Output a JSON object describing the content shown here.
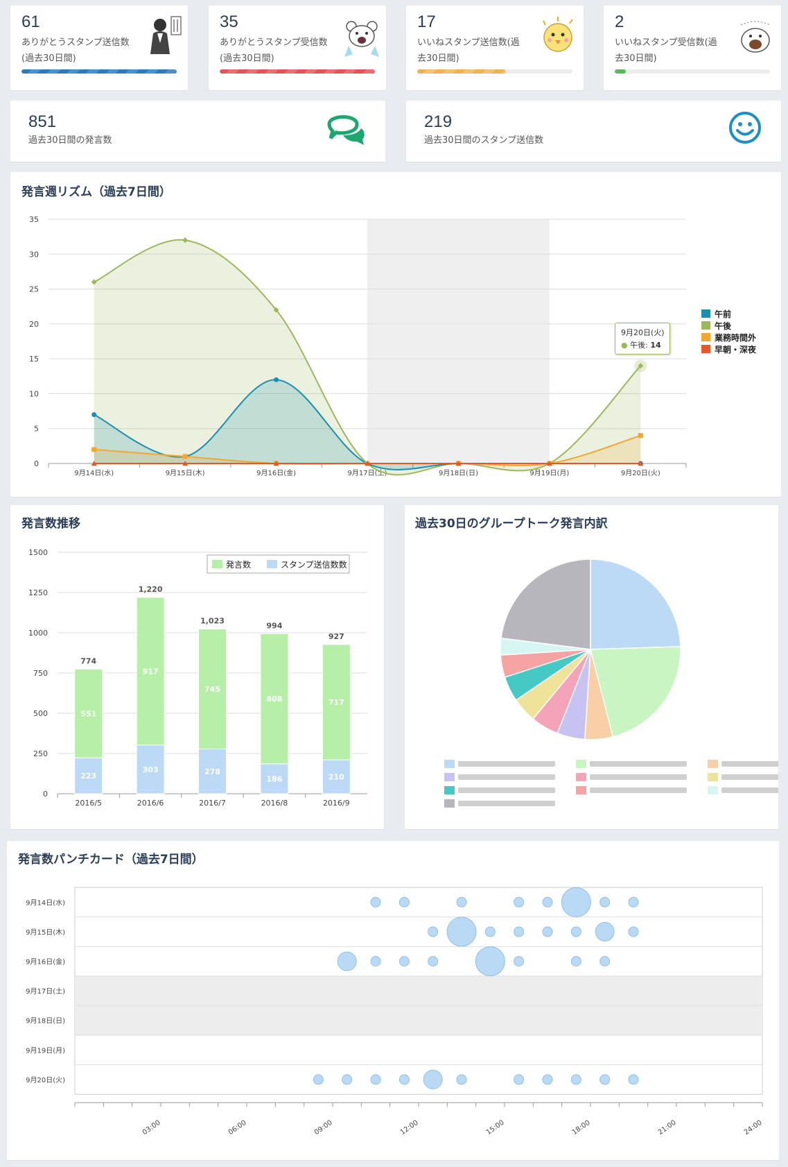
{
  "stats": [
    {
      "value": "61",
      "label1": "ありがとうスタンプ送信数",
      "label2": "(過去30日間)",
      "fill_pct": 100,
      "color": "#2f7ab8",
      "stamp": "salaryman-bow-stamp-icon"
    },
    {
      "value": "35",
      "label1": "ありがとうスタンプ受信数",
      "label2": "(過去30日間)",
      "fill_pct": 100,
      "color": "#e0545a",
      "stamp": "bear-cry-stamp-icon"
    },
    {
      "value": "17",
      "label1": "いいねスタンプ送信数(過",
      "label2": "去30日間)",
      "fill_pct": 57,
      "color": "#f0b153",
      "stamp": "chick-stamp-icon"
    },
    {
      "value": "2",
      "label1": "いいねスタンプ受信数(過",
      "label2": "去30日間)",
      "fill_pct": 7,
      "color": "#5cb85c",
      "stamp": "bird-stamp-icon"
    }
  ],
  "big_stats": [
    {
      "value": "851",
      "label": "過去30日間の発言数",
      "icon": "speech-bubbles-icon",
      "color": "#1aa86e"
    },
    {
      "value": "219",
      "label": "過去30日間のスタンプ送信数",
      "icon": "smiley-icon",
      "color": "#1d8fc5"
    }
  ],
  "rhythm": {
    "title": "発言週リズム（過去7日間）",
    "tooltip_date": "9月20日(火)",
    "tooltip_series": "午後",
    "tooltip_value": "14",
    "chart_data": {
      "type": "area",
      "categories": [
        "9月14日(水)",
        "9月15日(木)",
        "9月16日(金)",
        "9月17日(土)",
        "9月18日(日)",
        "9月19日(月)",
        "9月20日(火)"
      ],
      "ylim": [
        0,
        35
      ],
      "yticks": [
        0,
        5,
        10,
        15,
        20,
        25,
        30,
        35
      ],
      "weekend_band": [
        "9月17日(土)",
        "9月18日(日)"
      ],
      "legend": "right",
      "series": [
        {
          "name": "午前",
          "color": "#1a8fb0",
          "values": [
            7,
            1,
            12,
            0,
            0,
            0,
            0
          ]
        },
        {
          "name": "午後",
          "color": "#9bb85a",
          "values": [
            26,
            32,
            22,
            0,
            0,
            0,
            14
          ]
        },
        {
          "name": "業務時間外",
          "color": "#f0a830",
          "values": [
            2,
            1,
            0,
            0,
            0,
            0,
            4
          ]
        },
        {
          "name": "早朝・深夜",
          "color": "#e05a2a",
          "values": [
            0,
            0,
            0,
            0,
            0,
            0,
            0
          ]
        }
      ]
    }
  },
  "trend": {
    "title": "発言数推移",
    "chart_data": {
      "type": "bar",
      "categories": [
        "2016/5",
        "2016/6",
        "2016/7",
        "2016/8",
        "2016/9"
      ],
      "ylim": [
        0,
        1500
      ],
      "yticks": [
        0,
        250,
        500,
        750,
        1000,
        1250,
        1500
      ],
      "totals": [
        "774",
        "1,220",
        "1,023",
        "994",
        "927"
      ],
      "legend": "top-right",
      "series": [
        {
          "name": "スタンプ送信数数",
          "color": "#bcdaf5",
          "values": [
            223,
            303,
            278,
            186,
            210
          ]
        },
        {
          "name": "発言数",
          "color": "#b6f0a8",
          "values": [
            551,
            917,
            745,
            808,
            717
          ]
        }
      ]
    }
  },
  "breakdown": {
    "title": "過去30日のグループトーク発言内訳",
    "chart_data": {
      "type": "pie",
      "legend": "bottom",
      "slices": [
        {
          "value": 24.5,
          "color": "#bcdaf5"
        },
        {
          "value": 21.5,
          "color": "#c8f5c2"
        },
        {
          "value": 5.0,
          "color": "#f9cfa7"
        },
        {
          "value": 5.0,
          "color": "#c6c3f2"
        },
        {
          "value": 5.0,
          "color": "#f5a3b8"
        },
        {
          "value": 4.5,
          "color": "#efe39a"
        },
        {
          "value": 4.5,
          "color": "#46c9c4"
        },
        {
          "value": 4.0,
          "color": "#f6a3a3"
        },
        {
          "value": 3.0,
          "color": "#d6f6f3"
        },
        {
          "value": 23.0,
          "color": "#b7b6bd"
        }
      ]
    }
  },
  "punch": {
    "title": "発言数パンチカード（過去7日間）",
    "chart_data": {
      "type": "scatter",
      "rows": [
        "9月14日(水)",
        "9月15日(木)",
        "9月16日(金)",
        "9月17日(土)",
        "9月18日(日)",
        "9月19日(月)",
        "9月20日(火)"
      ],
      "weekend_rows": [
        3,
        4
      ],
      "xlim": [
        0,
        24
      ],
      "xticks": [
        "03:00",
        "06:00",
        "09:00",
        "12:00",
        "15:00",
        "18:00",
        "21:00",
        "24:00"
      ],
      "points": [
        [
          0,
          10.5,
          1
        ],
        [
          0,
          11.5,
          1
        ],
        [
          0,
          13.5,
          1
        ],
        [
          0,
          15.5,
          1
        ],
        [
          0,
          16.5,
          1
        ],
        [
          0,
          17.5,
          3
        ],
        [
          0,
          18.5,
          1
        ],
        [
          0,
          19.5,
          1
        ],
        [
          1,
          12.5,
          1
        ],
        [
          1,
          13.5,
          3
        ],
        [
          1,
          14.5,
          1
        ],
        [
          1,
          15.5,
          1
        ],
        [
          1,
          16.5,
          1
        ],
        [
          1,
          17.5,
          1
        ],
        [
          1,
          18.5,
          1.5
        ],
        [
          1,
          19.5,
          1
        ],
        [
          2,
          9.5,
          1.5
        ],
        [
          2,
          10.5,
          1
        ],
        [
          2,
          11.5,
          1
        ],
        [
          2,
          12.5,
          1
        ],
        [
          2,
          14.5,
          3
        ],
        [
          2,
          15.5,
          1
        ],
        [
          2,
          17.5,
          1
        ],
        [
          2,
          18.5,
          1
        ],
        [
          6,
          8.5,
          1
        ],
        [
          6,
          9.5,
          1
        ],
        [
          6,
          10.5,
          1
        ],
        [
          6,
          11.5,
          1
        ],
        [
          6,
          12.5,
          1.5
        ],
        [
          6,
          13.5,
          1
        ],
        [
          6,
          15.5,
          1
        ],
        [
          6,
          16.5,
          1
        ],
        [
          6,
          17.5,
          1
        ],
        [
          6,
          18.5,
          1
        ],
        [
          6,
          19.5,
          1
        ]
      ]
    }
  }
}
